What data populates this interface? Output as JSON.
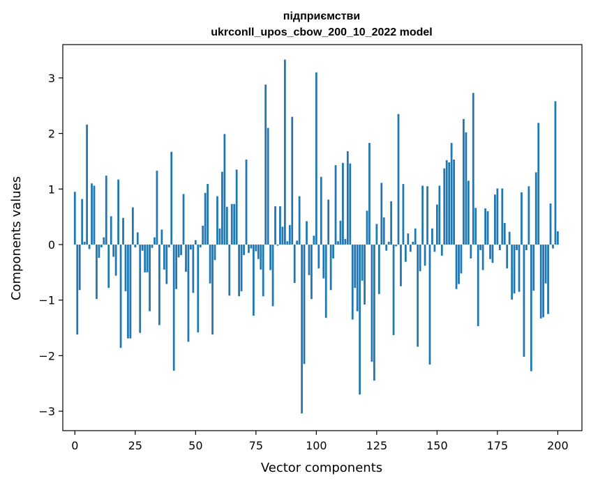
{
  "chart_data": {
    "type": "bar",
    "title_line1": "підприємстви",
    "title_line2": "ukrconll_upos_cbow_200_10_2022 model",
    "xlabel": "Vector components",
    "ylabel": "Components values",
    "xlim": [
      -5,
      210
    ],
    "ylim": [
      -3.35,
      3.6
    ],
    "xticks": [
      0,
      25,
      50,
      75,
      100,
      125,
      150,
      175,
      200
    ],
    "yticks": [
      -3,
      -2,
      -1,
      0,
      1,
      2,
      3
    ],
    "ytick_labels": [
      "−3",
      "−2",
      "−1",
      "0",
      "1",
      "2",
      "3"
    ],
    "bar_color": "#1f77b4",
    "values": [
      0.95,
      -1.62,
      -0.82,
      0.82,
      0.05,
      2.16,
      -0.08,
      1.1,
      1.06,
      -0.98,
      -0.24,
      -0.05,
      0.13,
      1.24,
      -0.78,
      0.51,
      -0.22,
      -0.56,
      1.17,
      -1.86,
      0.48,
      -0.84,
      -1.69,
      -1.69,
      0.67,
      -0.05,
      0.22,
      -1.59,
      -0.11,
      -0.5,
      -0.5,
      -1.2,
      -0.06,
      0.13,
      1.33,
      -1.45,
      0.27,
      -0.45,
      -0.71,
      -0.05,
      1.67,
      -2.27,
      -0.8,
      -0.23,
      -0.19,
      0.91,
      -0.49,
      -1.75,
      -0.09,
      -0.87,
      0.08,
      -1.58,
      -0.05,
      0.34,
      0.93,
      1.09,
      -0.7,
      -1.62,
      -0.28,
      0.87,
      0.29,
      1.31,
      1.99,
      0.68,
      -0.92,
      0.73,
      0.73,
      1.35,
      -0.93,
      -0.84,
      -0.19,
      1.53,
      -0.15,
      -0.07,
      -1.28,
      -0.12,
      -0.26,
      -0.45,
      -0.93,
      2.88,
      2.1,
      -0.46,
      -1.11,
      0.69,
      -0.02,
      0.69,
      0.32,
      3.33,
      0.06,
      0.35,
      2.3,
      -0.69,
      0.07,
      0.87,
      -3.04,
      -2.15,
      0.42,
      -0.55,
      -0.98,
      0.16,
      3.1,
      -0.43,
      1.22,
      -0.61,
      -1.32,
      0.81,
      -0.82,
      -0.25,
      1.43,
      0.06,
      0.43,
      1.47,
      0.1,
      1.68,
      1.46,
      -1.35,
      -0.78,
      -1.2,
      -2.7,
      -0.65,
      -1.08,
      0.61,
      1.83,
      -2.11,
      -2.45,
      0.37,
      -0.89,
      1.11,
      0.49,
      -0.11,
      0.05,
      0.78,
      -1.63,
      -0.03,
      2.35,
      -0.75,
      1.09,
      -0.31,
      0.2,
      -0.13,
      0.05,
      0.29,
      -1.84,
      -0.48,
      1.06,
      -0.38,
      1.05,
      -2.16,
      0.29,
      -0.13,
      0.72,
      1.06,
      -0.2,
      1.37,
      1.52,
      1.48,
      1.83,
      1.53,
      -0.8,
      -0.71,
      -0.52,
      2.26,
      2.02,
      1.15,
      -0.25,
      2.73,
      0.66,
      -1.47,
      -0.1,
      -0.46,
      0.65,
      0.6,
      -0.26,
      -0.33,
      0.9,
      1.01,
      -0.1,
      1.01,
      0.39,
      -0.43,
      0.23,
      -0.99,
      -0.88,
      -0.1,
      -0.85,
      0.94,
      -2.02,
      -0.1,
      1.05,
      -2.28,
      -0.83,
      1.3,
      2.19,
      -1.33,
      -1.31,
      -0.7,
      -1.25,
      0.74,
      -0.07,
      2.58,
      0.24
    ]
  }
}
